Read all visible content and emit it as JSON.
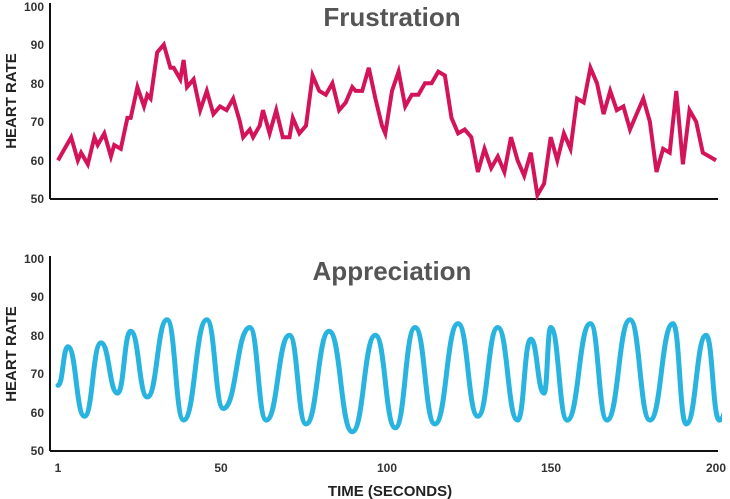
{
  "chart_data": [
    {
      "type": "line",
      "title": "Frustration",
      "ylabel": "HEART RATE",
      "xlabel": "",
      "ylim": [
        50,
        100
      ],
      "xlim": [
        1,
        200
      ],
      "yticks": [
        "50",
        "60",
        "70",
        "80",
        "90",
        "100"
      ],
      "xticks": [],
      "color": "#d4145a",
      "series": [
        {
          "x": [
            1,
            3,
            5,
            7,
            8,
            10,
            12,
            13,
            15,
            17,
            18,
            20,
            22,
            23,
            25,
            27,
            28,
            29,
            31,
            33,
            35,
            36,
            38,
            39,
            40,
            42,
            44,
            46,
            48,
            50,
            52,
            54,
            56,
            57,
            59,
            60,
            62,
            63,
            65,
            67,
            69,
            71,
            72,
            74,
            76,
            78,
            80,
            82,
            84,
            86,
            88,
            90,
            91,
            93,
            95,
            97,
            99,
            100,
            102,
            104,
            106,
            108,
            110,
            112,
            114,
            116,
            118,
            120,
            122,
            124,
            126,
            128,
            130,
            132,
            134,
            136,
            138,
            140,
            142,
            144,
            146,
            148,
            150,
            152,
            154,
            156,
            158,
            160,
            162,
            164,
            166,
            168,
            170,
            172,
            174,
            176,
            178,
            180,
            182,
            184,
            186,
            188,
            190,
            192,
            194,
            196,
            198,
            200
          ],
          "y": [
            60,
            63,
            66,
            60,
            62,
            59,
            66,
            64,
            67,
            61,
            64,
            63,
            71,
            71,
            79,
            74,
            77,
            76,
            88,
            90,
            84,
            84,
            81,
            86,
            79,
            81,
            73,
            78,
            72,
            74,
            73,
            76,
            70,
            66,
            68,
            66,
            69,
            73,
            67,
            73,
            66,
            66,
            71,
            67,
            69,
            82,
            78,
            77,
            80,
            73,
            75,
            79,
            78,
            78,
            84,
            76,
            69,
            67,
            78,
            83,
            74,
            77,
            77,
            80,
            80,
            83,
            82,
            71,
            67,
            68,
            66,
            57,
            63,
            58,
            61,
            57,
            66,
            60,
            56,
            62,
            51,
            54,
            66,
            60,
            67,
            63,
            76,
            75,
            84,
            80,
            72,
            78,
            73,
            74,
            68,
            72,
            76,
            70,
            57,
            63,
            62,
            78,
            59,
            73,
            70,
            62,
            61,
            60
          ]
        }
      ]
    },
    {
      "type": "line",
      "title": "Appreciation",
      "ylabel": "HEART RATE",
      "xlabel": "TIME (SECONDS)",
      "ylim": [
        50,
        100
      ],
      "xlim": [
        1,
        200
      ],
      "yticks": [
        "50",
        "60",
        "70",
        "80",
        "90",
        "100"
      ],
      "xticks": [
        "1",
        "50",
        "100",
        "150",
        "200"
      ],
      "color": "#29b4e0",
      "series": [
        {
          "extrema": [
            [
              1,
              67
            ],
            [
              4,
              77
            ],
            [
              9,
              59
            ],
            [
              14,
              78
            ],
            [
              19,
              65
            ],
            [
              23,
              81
            ],
            [
              28,
              64
            ],
            [
              34,
              84
            ],
            [
              39,
              58
            ],
            [
              46,
              84
            ],
            [
              51,
              61
            ],
            [
              59,
              82
            ],
            [
              64,
              58
            ],
            [
              71,
              80
            ],
            [
              76,
              57
            ],
            [
              83,
              81
            ],
            [
              90,
              55
            ],
            [
              97,
              80
            ],
            [
              103,
              56
            ],
            [
              109,
              82
            ],
            [
              115,
              57
            ],
            [
              122,
              83
            ],
            [
              128,
              59
            ],
            [
              134,
              82
            ],
            [
              140,
              58
            ],
            [
              144,
              79
            ],
            [
              148,
              65
            ],
            [
              150,
              82
            ],
            [
              155,
              58
            ],
            [
              162,
              83
            ],
            [
              167,
              58
            ],
            [
              174,
              84
            ],
            [
              180,
              58
            ],
            [
              187,
              83
            ],
            [
              191,
              57
            ],
            [
              197,
              80
            ],
            [
              201,
              58
            ],
            [
              205,
              65
            ]
          ]
        }
      ]
    }
  ]
}
